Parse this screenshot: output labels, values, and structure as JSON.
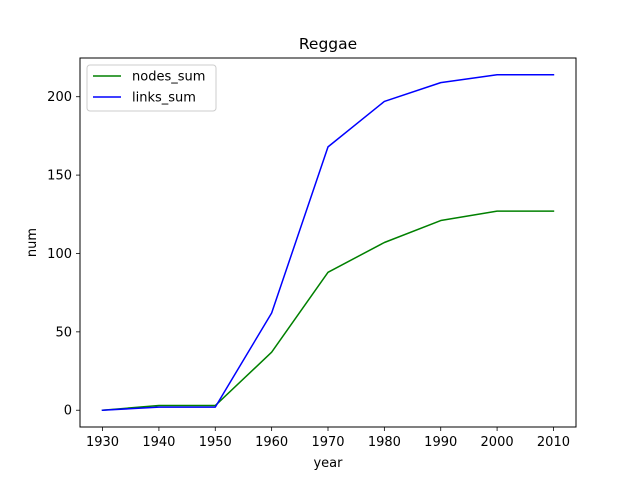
{
  "chart_data": {
    "type": "line",
    "title": "Reggae",
    "xlabel": "year",
    "ylabel": "num",
    "x": [
      1930,
      1940,
      1950,
      1960,
      1970,
      1980,
      1990,
      2000,
      2010
    ],
    "series": [
      {
        "name": "nodes_sum",
        "color": "#008000",
        "values": [
          0,
          3,
          3,
          37,
          88,
          107,
          121,
          127,
          127
        ]
      },
      {
        "name": "links_sum",
        "color": "#0000ff",
        "values": [
          0,
          2,
          2,
          62,
          168,
          197,
          209,
          214,
          214
        ]
      }
    ],
    "xlim": [
      1926,
      2014
    ],
    "ylim": [
      -10.7,
      224.7
    ],
    "xticks": [
      1930,
      1940,
      1950,
      1960,
      1970,
      1980,
      1990,
      2000,
      2010
    ],
    "yticks": [
      0,
      50,
      100,
      150,
      200
    ],
    "grid": false,
    "legend": "upper-left"
  }
}
